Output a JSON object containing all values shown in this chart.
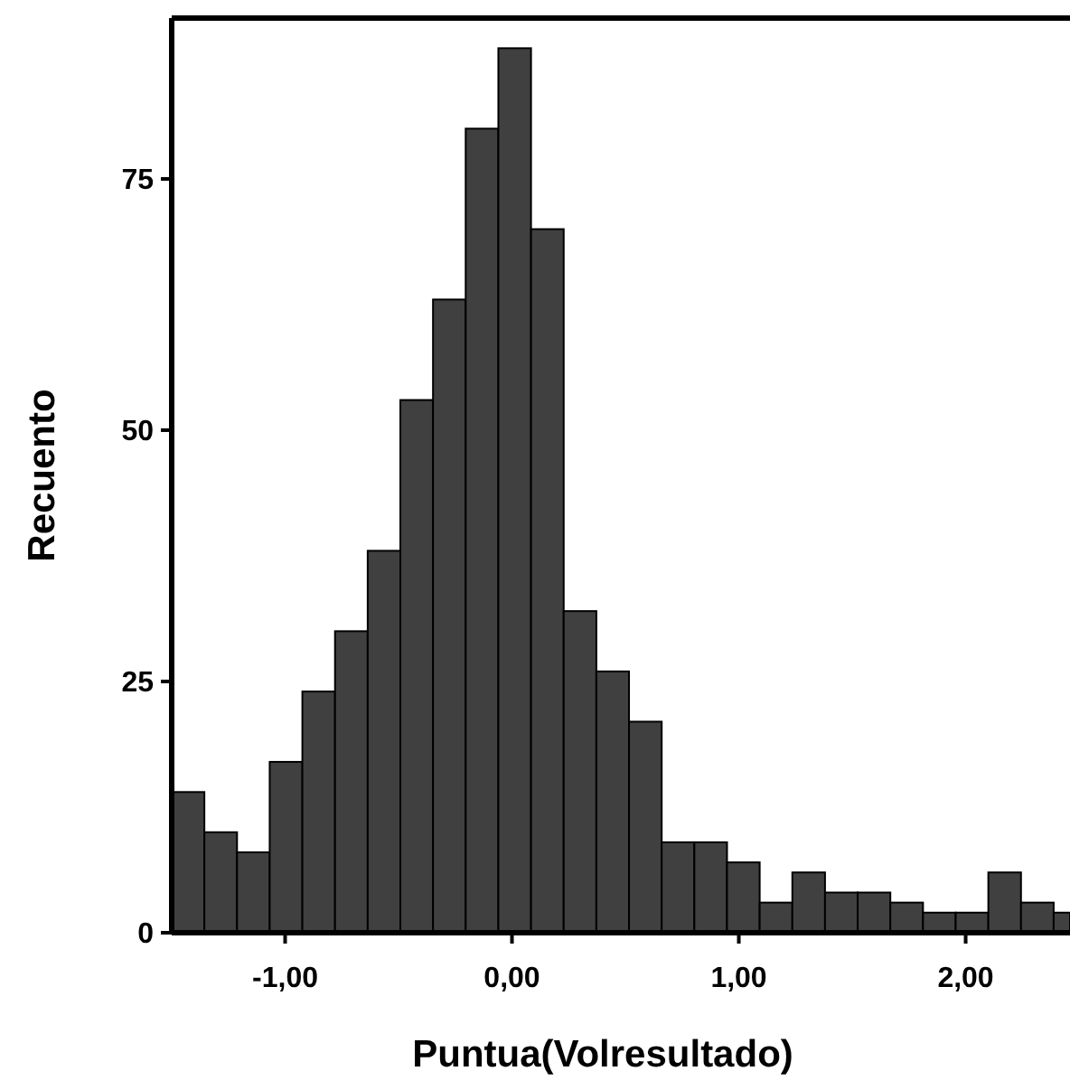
{
  "chart_data": {
    "type": "histogram",
    "xlabel": "Puntua(Volresultado)",
    "ylabel": "Recuento",
    "color": "#404040",
    "bins": [
      -1.5,
      -1.356,
      -1.212,
      -1.068,
      -0.924,
      -0.78,
      -0.636,
      -0.492,
      -0.348,
      -0.204,
      -0.06,
      0.084,
      0.228,
      0.372,
      0.516,
      0.66,
      0.804,
      0.948,
      1.092,
      1.236,
      1.38,
      1.524,
      1.668,
      1.812,
      1.956,
      2.1,
      2.244,
      2.388,
      2.46
    ],
    "values": [
      14,
      10,
      8,
      17,
      24,
      30,
      38,
      53,
      63,
      80,
      88,
      70,
      32,
      26,
      21,
      9,
      9,
      7,
      3,
      6,
      4,
      4,
      3,
      2,
      2,
      6,
      3,
      2
    ],
    "xlim": [
      -1.5,
      2.46
    ],
    "ylim": [
      0,
      91
    ],
    "xticks": [
      {
        "value": -1,
        "label": "-1,00"
      },
      {
        "value": 0,
        "label": "0,00"
      },
      {
        "value": 1,
        "label": "1,00"
      },
      {
        "value": 2,
        "label": "2,00"
      }
    ],
    "yticks": [
      0,
      25,
      50,
      75
    ],
    "grid": false
  }
}
